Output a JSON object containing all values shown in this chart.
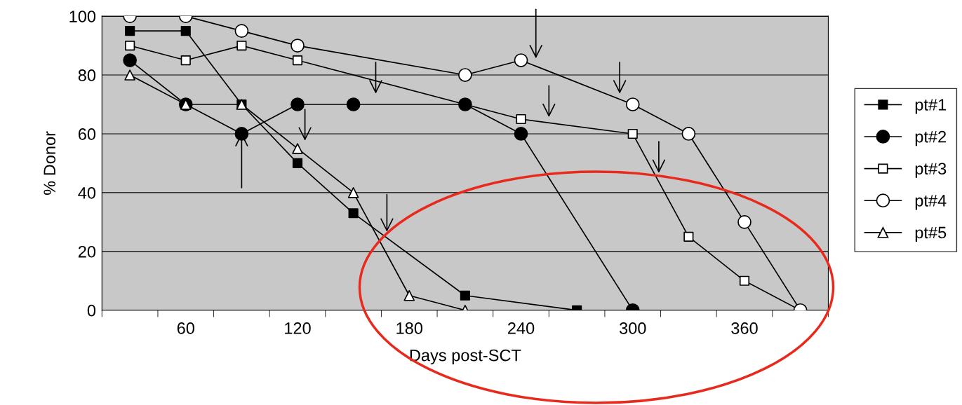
{
  "chart_data": {
    "type": "line",
    "xlabel": "Days post-SCT",
    "ylabel": "% Donor",
    "xlim": [
      15,
      405
    ],
    "xticks": [
      60,
      120,
      180,
      240,
      300,
      360
    ],
    "ylim": [
      0,
      100
    ],
    "yticks": [
      0,
      20,
      40,
      60,
      80,
      100
    ],
    "grid": "y",
    "legend": "right",
    "series": [
      {
        "name": "pt#1",
        "color": "#000000",
        "marker": "square",
        "x": [
          30,
          60,
          90,
          120,
          150,
          210,
          270
        ],
        "colors": [
          "#000000",
          "#000000",
          "#000000",
          "#000000",
          "#000000",
          "#000000",
          "#000000"
        ],
        "values": [
          95,
          95,
          70,
          50,
          33,
          5,
          0
        ]
      },
      {
        "name": "pt#2",
        "color": "#000000",
        "marker": "circle",
        "x": [
          30,
          60,
          90,
          120,
          150,
          210,
          240,
          300
        ],
        "colors": [
          "#000000",
          "#000000",
          "#000000",
          "#000000",
          "#000000",
          "#000000",
          "#000000",
          "#000000"
        ],
        "values": [
          85,
          70,
          60,
          70,
          70,
          70,
          60,
          0
        ]
      },
      {
        "name": "pt#3",
        "color": "#000000",
        "marker": "square",
        "x": [
          30,
          60,
          90,
          120,
          240,
          300,
          330,
          360,
          390
        ],
        "colors": [
          "#ffffff",
          "#ffffff",
          "#ffffff",
          "#ffffff",
          "#ffffff",
          "#ffffff",
          "#ffffff",
          "#ffffff",
          "#ffffff"
        ],
        "values": [
          90,
          85,
          90,
          85,
          65,
          60,
          25,
          10,
          0
        ]
      },
      {
        "name": "pt#4",
        "color": "#000000",
        "marker": "circle",
        "x": [
          30,
          60,
          90,
          120,
          210,
          240,
          300,
          330,
          360,
          390
        ],
        "colors": [
          "#ffffff",
          "#ffffff",
          "#ffffff",
          "#ffffff",
          "#ffffff",
          "#ffffff",
          "#ffffff",
          "#ffffff",
          "#ffffff",
          "#ffffff"
        ],
        "values": [
          100,
          100,
          95,
          90,
          80,
          85,
          70,
          60,
          30,
          0
        ]
      },
      {
        "name": "pt#5",
        "color": "#000000",
        "marker": "triangle",
        "x": [
          30,
          60,
          90,
          120,
          150,
          180,
          210
        ],
        "colors": [
          "#ffffff",
          "#ffffff",
          "#ffffff",
          "#ffffff",
          "#ffffff",
          "#ffffff",
          "#ffffff"
        ],
        "values": [
          80,
          70,
          70,
          55,
          40,
          5,
          0
        ]
      }
    ]
  }
}
